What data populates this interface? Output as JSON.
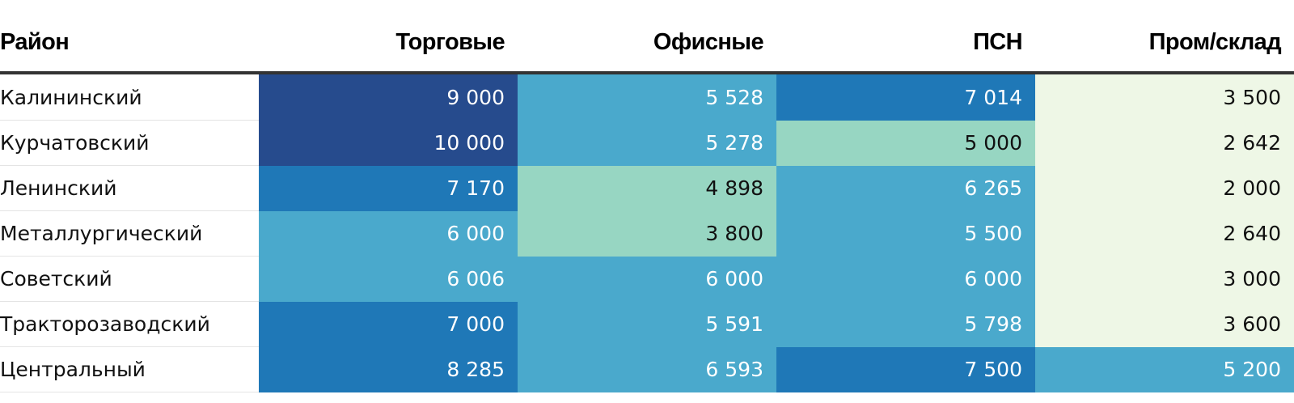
{
  "chart_data": {
    "type": "table",
    "columns": [
      "Район",
      "Торговые",
      "Офисные",
      "ПСН",
      "Пром/склад"
    ],
    "rows": [
      {
        "name": "Калининский",
        "values": [
          9000,
          5528,
          7014,
          3500
        ],
        "labels": [
          "9 000",
          "5 528",
          "7 014",
          "3 500"
        ]
      },
      {
        "name": "Курчатовский",
        "values": [
          10000,
          5278,
          5000,
          2642
        ],
        "labels": [
          "10 000",
          "5 278",
          "5 000",
          "2 642"
        ]
      },
      {
        "name": "Ленинский",
        "values": [
          7170,
          4898,
          6265,
          2000
        ],
        "labels": [
          "7 170",
          "4 898",
          "6 265",
          "2 000"
        ]
      },
      {
        "name": "Металлургический",
        "values": [
          6000,
          3800,
          5500,
          2640
        ],
        "labels": [
          "6 000",
          "3 800",
          "5 500",
          "2 640"
        ]
      },
      {
        "name": "Советский",
        "values": [
          6006,
          6000,
          6000,
          3000
        ],
        "labels": [
          "6 006",
          "6 000",
          "6 000",
          "3 000"
        ]
      },
      {
        "name": "Тракторозаводский",
        "values": [
          7000,
          5591,
          5798,
          3600
        ],
        "labels": [
          "7 000",
          "5 591",
          "5 798",
          "3 600"
        ]
      },
      {
        "name": "Центральный",
        "values": [
          8285,
          6593,
          7500,
          5200
        ],
        "labels": [
          "8 285",
          "6 593",
          "7 500",
          "5 200"
        ]
      }
    ],
    "color_scale": [
      {
        "min": 0,
        "max": 3700,
        "color": "#eef7e6",
        "text": "#111111"
      },
      {
        "min": 3700,
        "max": 5200,
        "color": "#97d6c2",
        "text": "#111111"
      },
      {
        "min": 5200,
        "max": 7000,
        "color": "#4aa9cc",
        "text": "#ffffff"
      },
      {
        "min": 7000,
        "max": 8500,
        "color": "#1f78b7",
        "text": "#ffffff"
      },
      {
        "min": 8500,
        "max": 100000,
        "color": "#264b8d",
        "text": "#ffffff"
      }
    ]
  }
}
